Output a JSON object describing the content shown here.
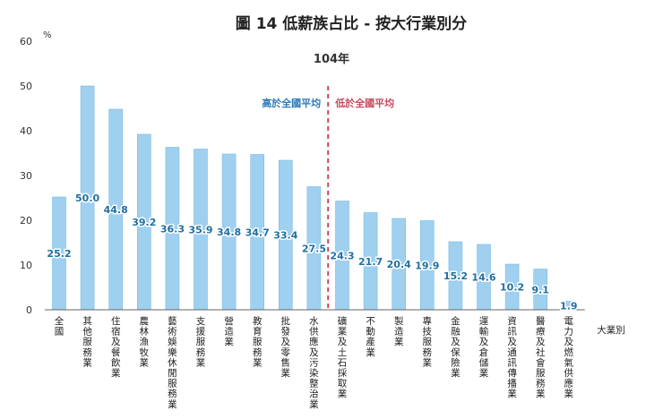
{
  "chart_data": {
    "type": "bar",
    "title": "圖 14  低薪族占比 - 按大行業別分",
    "subtitle": "104年",
    "ylabel": "%",
    "xlabel": "大業別",
    "ylim": [
      0,
      60
    ],
    "yticks": [
      0,
      10,
      20,
      30,
      40,
      50,
      60
    ],
    "grid": false,
    "categories": [
      "全國",
      "其他服務業",
      "住宿及餐飲業",
      "農林漁牧業",
      "藝術娛樂休閒服務業",
      "支援服務業",
      "營造業",
      "教育服務業",
      "批發及零售業",
      "水供應及污染整治業",
      "礦業及土石採取業",
      "不動產業",
      "製造業",
      "專技服務業",
      "金融及保險業",
      "運輸及倉儲業",
      "資訊及通訊傳播業",
      "醫療及社會服務業",
      "電力及燃氣供應業"
    ],
    "values": [
      25.2,
      50.0,
      44.8,
      39.2,
      36.3,
      35.9,
      34.8,
      34.7,
      33.4,
      27.5,
      24.3,
      21.7,
      20.4,
      19.9,
      15.2,
      14.6,
      10.2,
      9.1,
      1.9
    ],
    "value_labels": [
      "25.2",
      "50.0",
      "44.8",
      "39.2",
      "36.3",
      "35.9",
      "34.8",
      "34.7",
      "33.4",
      "27.5",
      "24.3",
      "21.7",
      "20.4",
      "19.9",
      "15.2",
      "14.6",
      "10.2",
      "9.1",
      "1.9"
    ],
    "annotations": {
      "above": "高於全國平均",
      "below": "低於全國平均",
      "divider_between": [
        9,
        10
      ]
    },
    "colors": {
      "bar_fill": "#9fd0ef",
      "bar_stroke": "#7fb9e0",
      "value_text": "#1f6fa3",
      "above_text": "#2c79b8",
      "below_text": "#c64a5d",
      "divider": "#c64a5d"
    }
  }
}
